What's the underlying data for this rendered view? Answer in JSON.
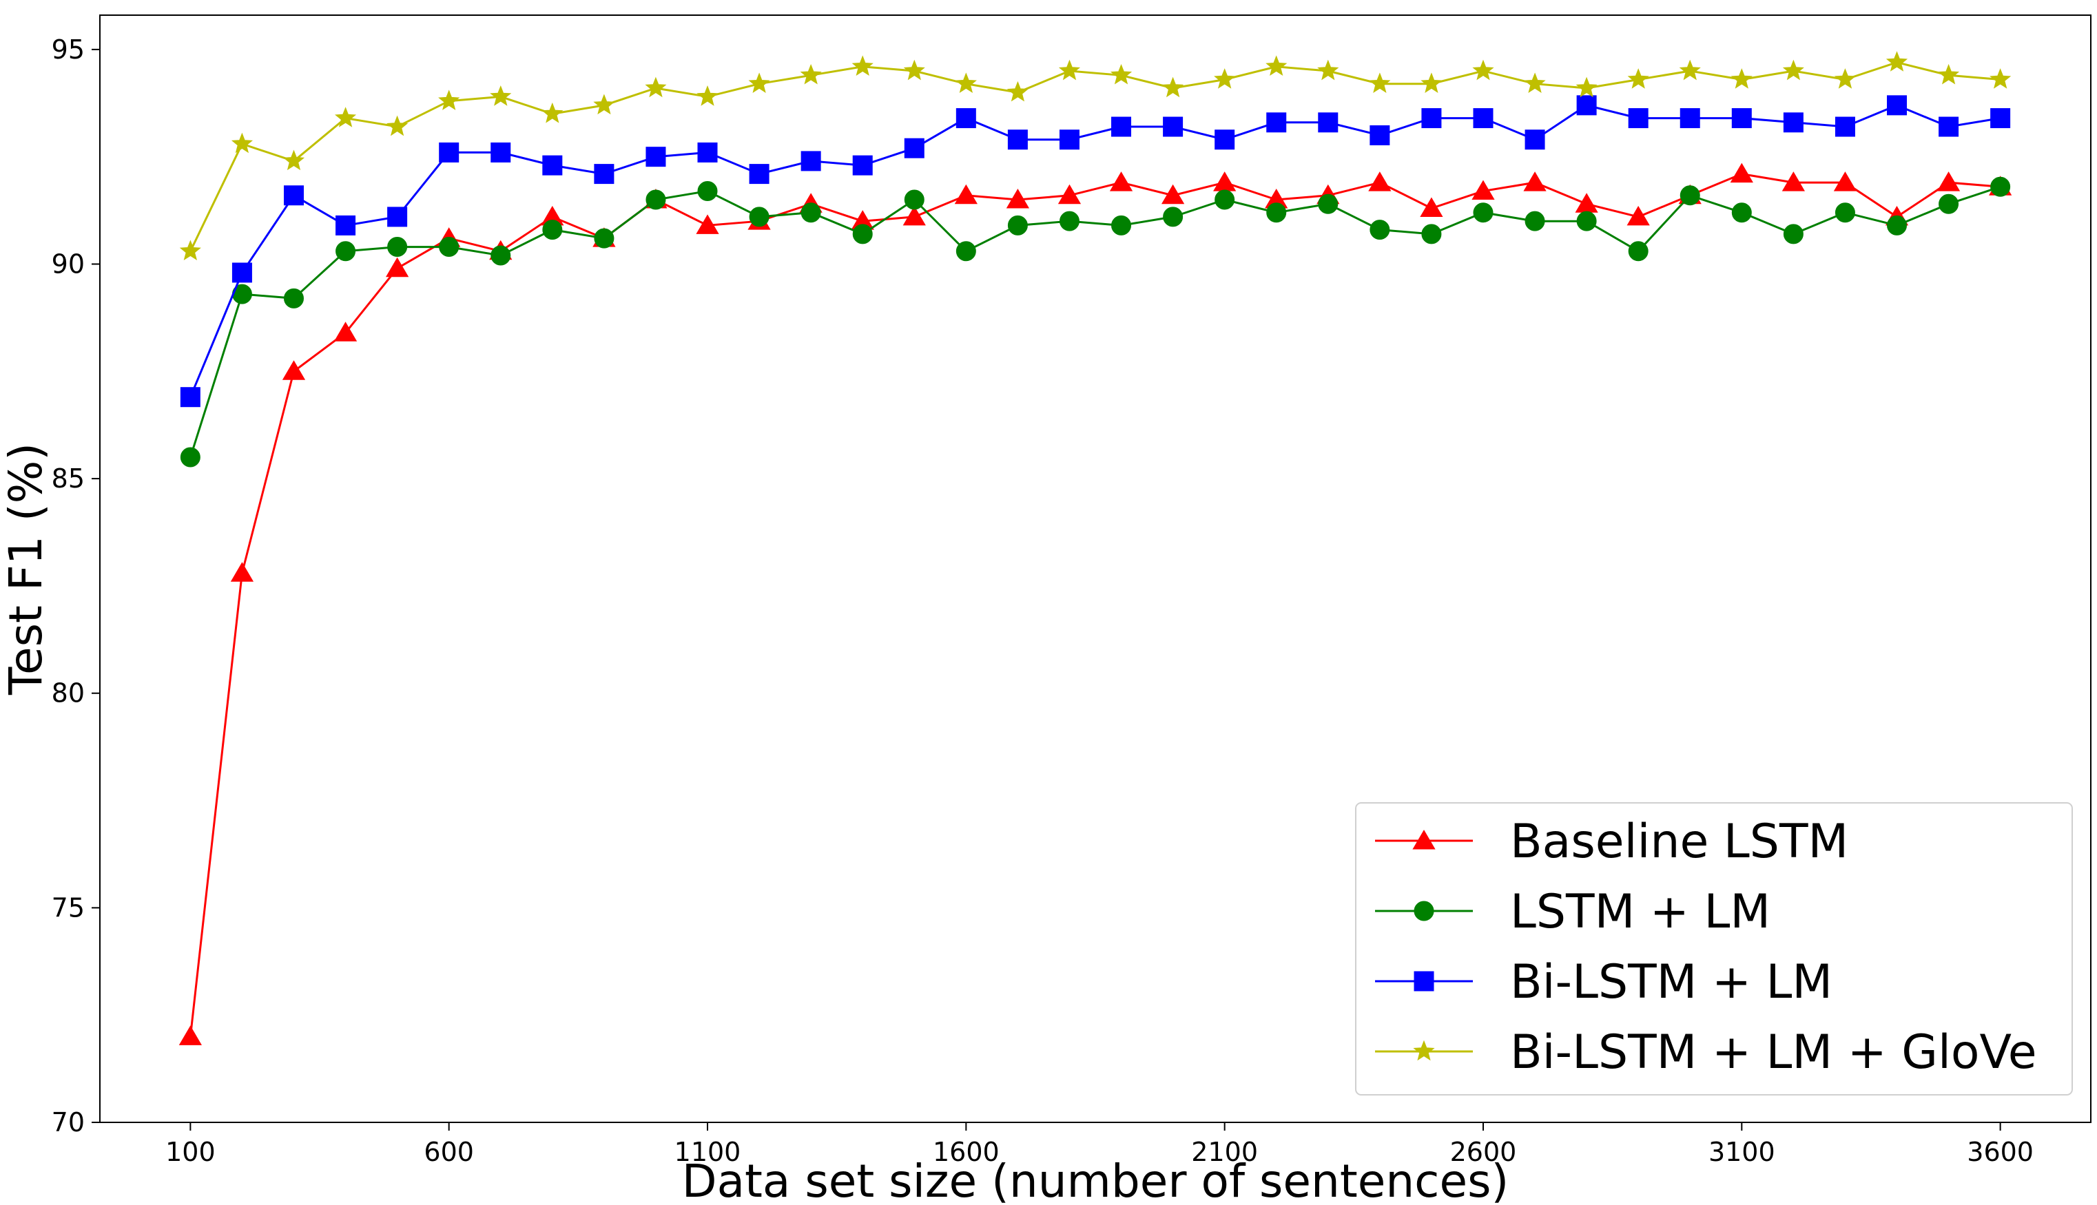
{
  "chart_data": {
    "type": "line",
    "xlabel": "Data set size (number of sentences)",
    "ylabel": "Test F1 (%)",
    "xlim": [
      -75,
      3775
    ],
    "ylim": [
      70,
      95.8
    ],
    "xticks": [
      100,
      600,
      1100,
      1600,
      2100,
      2600,
      3100,
      3600
    ],
    "yticks": [
      70,
      75,
      80,
      85,
      90,
      95
    ],
    "grid": false,
    "legend_position": "lower-right",
    "x": [
      100,
      200,
      300,
      400,
      500,
      600,
      700,
      800,
      900,
      1000,
      1100,
      1200,
      1300,
      1400,
      1500,
      1600,
      1700,
      1800,
      1900,
      2000,
      2100,
      2200,
      2300,
      2400,
      2500,
      2600,
      2700,
      2800,
      2900,
      3000,
      3100,
      3200,
      3300,
      3400,
      3500,
      3600
    ],
    "series": [
      {
        "name": "Baseline LSTM",
        "color": "#ff0000",
        "marker": "triangle",
        "values": [
          72.0,
          82.8,
          87.5,
          88.4,
          89.9,
          90.6,
          90.3,
          91.1,
          90.6,
          91.5,
          90.9,
          91.0,
          91.4,
          91.0,
          91.1,
          91.6,
          91.5,
          91.6,
          91.9,
          91.6,
          91.9,
          91.5,
          91.6,
          91.9,
          91.3,
          91.7,
          91.9,
          91.4,
          91.1,
          91.6,
          92.1,
          91.9,
          91.9,
          91.1,
          91.9,
          91.8
        ]
      },
      {
        "name": "LSTM + LM",
        "color": "#008000",
        "marker": "circle",
        "values": [
          85.5,
          89.3,
          89.2,
          90.3,
          90.4,
          90.4,
          90.2,
          90.8,
          90.6,
          91.5,
          91.7,
          91.1,
          91.2,
          90.7,
          91.5,
          90.3,
          90.9,
          91.0,
          90.9,
          91.1,
          91.5,
          91.2,
          91.4,
          90.8,
          90.7,
          91.2,
          91.0,
          91.0,
          90.3,
          91.6,
          91.2,
          90.7,
          91.2,
          90.9,
          91.4,
          91.8
        ]
      },
      {
        "name": "Bi-LSTM + LM",
        "color": "#0000ff",
        "marker": "square",
        "values": [
          86.9,
          89.8,
          91.6,
          90.9,
          91.1,
          92.6,
          92.6,
          92.3,
          92.1,
          92.5,
          92.6,
          92.1,
          92.4,
          92.3,
          92.7,
          93.4,
          92.9,
          92.9,
          93.2,
          93.2,
          92.9,
          93.3,
          93.3,
          93.0,
          93.4,
          93.4,
          92.9,
          93.7,
          93.4,
          93.4,
          93.4,
          93.3,
          93.2,
          93.7,
          93.2,
          93.4
        ]
      },
      {
        "name": "Bi-LSTM + LM + GloVe",
        "color": "#bfbf00",
        "marker": "star",
        "values": [
          90.3,
          92.8,
          92.4,
          93.4,
          93.2,
          93.8,
          93.9,
          93.5,
          93.7,
          94.1,
          93.9,
          94.2,
          94.4,
          94.6,
          94.5,
          94.2,
          94.0,
          94.5,
          94.4,
          94.1,
          94.3,
          94.6,
          94.5,
          94.2,
          94.2,
          94.5,
          94.2,
          94.1,
          94.3,
          94.5,
          94.3,
          94.5,
          94.3,
          94.7,
          94.4,
          94.3
        ]
      }
    ]
  }
}
